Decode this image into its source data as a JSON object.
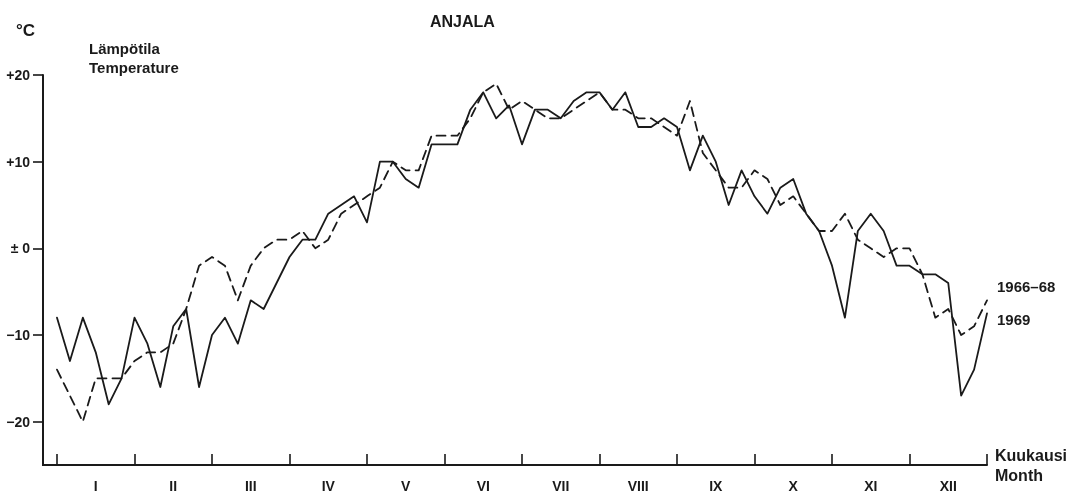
{
  "chart_data": {
    "type": "line",
    "title": "ANJALA",
    "xlabel": "Kuukausi\nMonth",
    "ylabel": "Lämpötila\nTemperature",
    "annotations": [
      "°C"
    ],
    "categories": [
      null,
      null,
      null,
      "I",
      null,
      null,
      null,
      null,
      null,
      "II",
      null,
      null,
      null,
      null,
      null,
      "III",
      null,
      null,
      null,
      null,
      null,
      "IV",
      null,
      null,
      null,
      null,
      null,
      "V",
      null,
      null,
      null,
      null,
      null,
      "VI",
      null,
      null,
      null,
      null,
      null,
      "VII",
      null,
      null,
      null,
      null,
      null,
      "VIII",
      null,
      null,
      null,
      null,
      null,
      "IX",
      null,
      null,
      null,
      null,
      null,
      "X",
      null,
      null,
      null,
      null,
      null,
      "XI",
      null,
      null,
      null,
      null,
      null,
      "XII",
      null,
      null,
      null
    ],
    "ylim": [
      -25,
      20
    ],
    "yticks": [
      {
        "value": -20,
        "label": "−20"
      },
      {
        "value": -10,
        "label": "−10"
      },
      {
        "value": 0,
        "label": "± 0"
      },
      {
        "value": 10,
        "label": "+10"
      },
      {
        "value": 20,
        "label": "+20"
      }
    ],
    "grid": false,
    "legend": false,
    "marker": "none",
    "series": [
      {
        "name": "1966–68",
        "color": "#1a1a1a",
        "line_style": "dashed",
        "values": [
          -14,
          -17,
          -20,
          -15,
          -15,
          -15,
          -13,
          -12,
          -12,
          -11,
          -7,
          -2,
          -1,
          -2,
          -6,
          -2,
          0,
          1,
          1,
          2,
          0,
          1,
          4,
          5,
          6,
          7,
          10,
          9,
          9,
          13,
          13,
          13,
          15,
          18,
          19,
          16,
          17,
          16,
          15,
          15,
          16,
          17,
          18,
          16,
          16,
          15,
          15,
          14,
          13,
          17,
          11,
          9,
          7,
          7,
          9,
          8,
          5,
          6,
          4,
          2,
          2,
          4,
          1,
          0,
          -1,
          0,
          0,
          -3,
          -8,
          -7,
          -10,
          -9,
          -6
        ]
      },
      {
        "name": "1969",
        "color": "#1a1a1a",
        "line_style": "solid",
        "values": [
          -8,
          -13,
          -8,
          -12,
          -18,
          -15,
          -8,
          -11,
          -16,
          -9,
          -7,
          -16,
          -10,
          -8,
          -11,
          -6,
          -7,
          -4,
          -1,
          1,
          1,
          4,
          5,
          6,
          3,
          10,
          10,
          8,
          7,
          12,
          12,
          12,
          16,
          18,
          15,
          16.5,
          12,
          16,
          16,
          15,
          17,
          18,
          18,
          16,
          18,
          14,
          14,
          15,
          14,
          9,
          13,
          10,
          5,
          9,
          6,
          4,
          7,
          8,
          4,
          2,
          -2,
          -8,
          2,
          4,
          2,
          -2,
          -2,
          -3,
          -3,
          -4,
          -17,
          -14,
          -7.5
        ]
      }
    ]
  }
}
